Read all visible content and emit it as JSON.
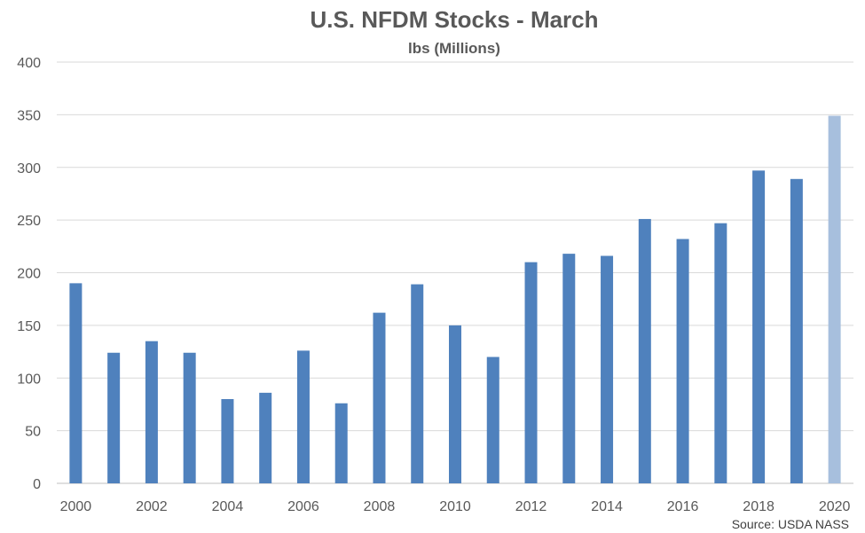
{
  "chart_data": {
    "type": "bar",
    "title": "U.S. NFDM Stocks - March",
    "subtitle": "lbs (Millions)",
    "source": "Source: USDA NASS",
    "xlabel": "",
    "ylabel": "",
    "ylim": [
      0,
      400
    ],
    "yticks": [
      0,
      50,
      100,
      150,
      200,
      250,
      300,
      350,
      400
    ],
    "grid": true,
    "legend": "none",
    "categories": [
      "2000",
      "2001",
      "2002",
      "2003",
      "2004",
      "2005",
      "2006",
      "2007",
      "2008",
      "2009",
      "2010",
      "2011",
      "2012",
      "2013",
      "2014",
      "2015",
      "2016",
      "2017",
      "2018",
      "2019",
      "2020"
    ],
    "xtick_labels": [
      "2000",
      "",
      "2002",
      "",
      "2004",
      "",
      "2006",
      "",
      "2008",
      "",
      "2010",
      "",
      "2012",
      "",
      "2014",
      "",
      "2016",
      "",
      "2018",
      "",
      "2020"
    ],
    "values": [
      190,
      124,
      135,
      124,
      80,
      86,
      126,
      76,
      162,
      189,
      150,
      120,
      210,
      218,
      216,
      251,
      232,
      247,
      297,
      289,
      349
    ],
    "colors": {
      "bar": "#4f81bd",
      "highlight_bar": "#a7bfdd",
      "highlight_index": 20
    }
  }
}
